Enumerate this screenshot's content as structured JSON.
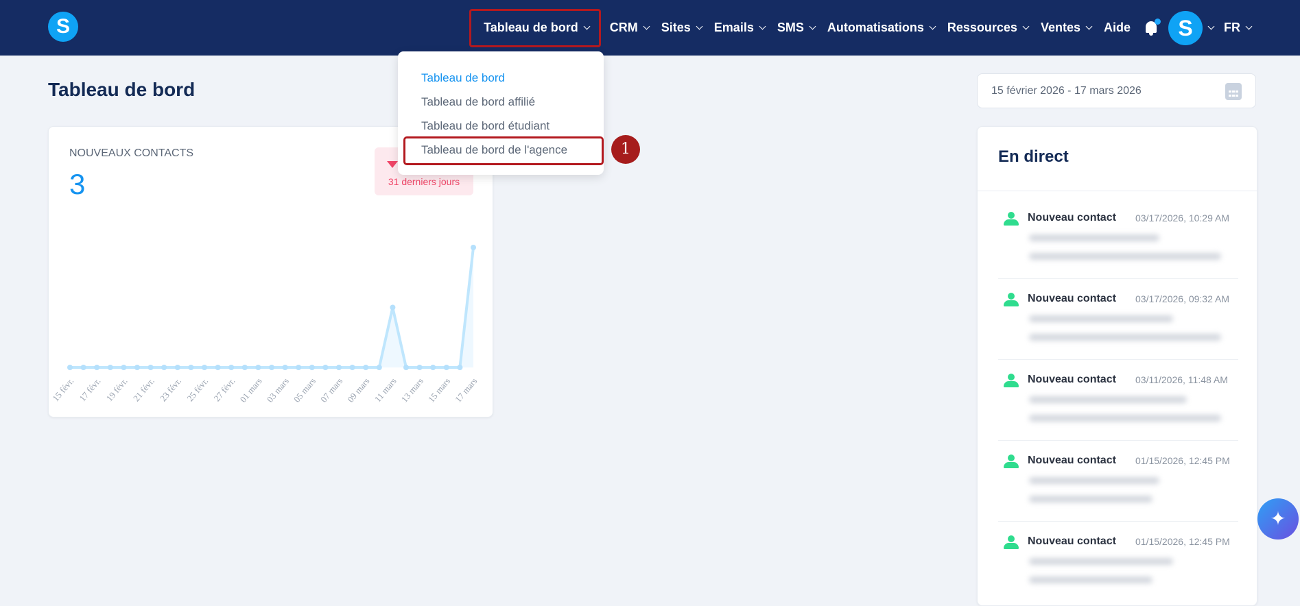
{
  "header": {
    "logo": "S",
    "nav": [
      {
        "label": "Tableau de bord",
        "chevron": true,
        "active": true
      },
      {
        "label": "CRM",
        "chevron": true
      },
      {
        "label": "Sites",
        "chevron": true
      },
      {
        "label": "Emails",
        "chevron": true
      },
      {
        "label": "SMS",
        "chevron": true
      },
      {
        "label": "Automatisations",
        "chevron": true
      },
      {
        "label": "Ressources",
        "chevron": true
      },
      {
        "label": "Ventes",
        "chevron": true
      },
      {
        "label": "Aide",
        "chevron": false
      }
    ],
    "avatar": "S",
    "language": "FR",
    "icons": {
      "notifications": "bell-icon"
    }
  },
  "dropdown": {
    "items": [
      {
        "label": "Tableau de bord",
        "selected": true
      },
      {
        "label": "Tableau de bord affilié"
      },
      {
        "label": "Tableau de bord étudiant"
      },
      {
        "label": "Tableau de bord de l'agence",
        "highlighted": true
      }
    ],
    "step_marker": "1"
  },
  "page": {
    "title": "Tableau de bord"
  },
  "date_range": {
    "value": "15 février 2026 - 17 mars 2026",
    "icon": "calendar-icon"
  },
  "kpi": {
    "label": "NOUVEAUX CONTACTS",
    "value": "3",
    "trend": "down",
    "period": "31 derniers jours"
  },
  "chart_data": {
    "type": "line",
    "x": [
      "15 févr.",
      "16 févr.",
      "17 févr.",
      "18 févr.",
      "19 févr.",
      "20 févr.",
      "21 févr.",
      "22 févr.",
      "23 févr.",
      "24 févr.",
      "25 févr.",
      "26 févr.",
      "27 févr.",
      "28 févr.",
      "01 mars",
      "02 mars",
      "03 mars",
      "04 mars",
      "05 mars",
      "06 mars",
      "07 mars",
      "08 mars",
      "09 mars",
      "10 mars",
      "11 mars",
      "12 mars",
      "13 mars",
      "14 mars",
      "15 mars",
      "16 mars",
      "17 mars"
    ],
    "tick_labels": [
      "15 févr.",
      "17 févr.",
      "19 févr.",
      "21 févr.",
      "23 févr.",
      "25 févr.",
      "27 févr.",
      "01 mars",
      "03 mars",
      "05 mars",
      "07 mars",
      "09 mars",
      "11 mars",
      "13 mars",
      "15 mars",
      "17 mars"
    ],
    "values": [
      0,
      0,
      0,
      0,
      0,
      0,
      0,
      0,
      0,
      0,
      0,
      0,
      0,
      0,
      0,
      0,
      0,
      0,
      0,
      0,
      0,
      0,
      0,
      0,
      1,
      0,
      0,
      0,
      0,
      0,
      2
    ],
    "ylim": [
      0,
      2
    ],
    "grid": false,
    "color": "#bfe6fd"
  },
  "live": {
    "title": "En direct",
    "items": [
      {
        "title": "Nouveau contact",
        "time": "03/17/2026, 10:29 AM"
      },
      {
        "title": "Nouveau contact",
        "time": "03/17/2026, 09:32 AM"
      },
      {
        "title": "Nouveau contact",
        "time": "03/11/2026, 11:48 AM"
      },
      {
        "title": "Nouveau contact",
        "time": "01/15/2026, 12:45 PM"
      },
      {
        "title": "Nouveau contact",
        "time": "01/15/2026, 12:45 PM"
      }
    ]
  },
  "fab": {
    "icon": "sparkles-icon",
    "glyph": "✦"
  }
}
